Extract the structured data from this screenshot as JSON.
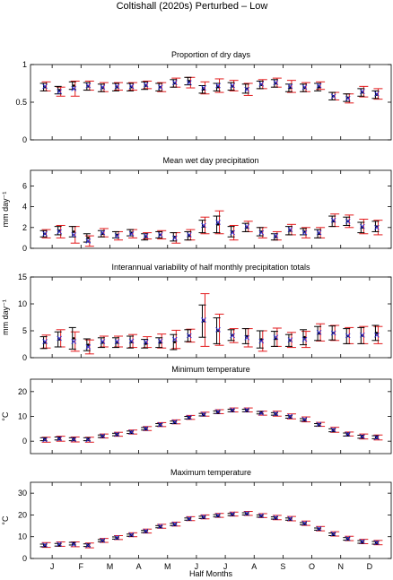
{
  "figure_title": "Coltishall (2020s) Perturbed – Low",
  "xlabel": "Half Months",
  "months": [
    "J",
    "F",
    "M",
    "A",
    "M",
    "J",
    "J",
    "A",
    "S",
    "O",
    "N",
    "D"
  ],
  "colors": {
    "observed": "#000000",
    "perturbed": "#e31a1c",
    "marker": "#2b2bd9"
  },
  "chart_data": [
    {
      "type": "errorbar",
      "title": "Proportion of dry days",
      "ylabel": "",
      "ylim": [
        0,
        1
      ],
      "yticks": [
        0,
        0.5,
        1
      ],
      "ytick_labels": [
        "0",
        "0.5",
        "1"
      ],
      "series": [
        {
          "values": [
            0.7,
            0.66,
            0.72,
            0.71,
            0.69,
            0.7,
            0.7,
            0.72,
            0.7,
            0.75,
            0.78,
            0.67,
            0.7,
            0.71,
            0.68,
            0.73,
            0.75,
            0.69,
            0.69,
            0.7,
            0.58,
            0.56,
            0.63,
            0.6
          ],
          "err": [
            0.05,
            0.05,
            0.05,
            0.05,
            0.05,
            0.05,
            0.05,
            0.05,
            0.05,
            0.05,
            0.05,
            0.05,
            0.05,
            0.05,
            0.06,
            0.05,
            0.05,
            0.05,
            0.05,
            0.05,
            0.05,
            0.05,
            0.05,
            0.05
          ]
        },
        {
          "values": [
            0.71,
            0.64,
            0.68,
            0.72,
            0.7,
            0.71,
            0.71,
            0.73,
            0.7,
            0.76,
            0.76,
            0.69,
            0.72,
            0.72,
            0.67,
            0.74,
            0.76,
            0.71,
            0.7,
            0.72,
            0.58,
            0.55,
            0.64,
            0.61
          ],
          "err": [
            0.06,
            0.06,
            0.1,
            0.06,
            0.06,
            0.05,
            0.05,
            0.05,
            0.06,
            0.06,
            0.07,
            0.08,
            0.09,
            0.07,
            0.08,
            0.06,
            0.06,
            0.08,
            0.06,
            0.05,
            0.05,
            0.06,
            0.07,
            0.07
          ]
        }
      ]
    },
    {
      "type": "errorbar",
      "title": "Mean wet day precipitation",
      "ylabel": "mm day⁻¹",
      "ylim": [
        0,
        7.5
      ],
      "yticks": [
        0,
        2,
        4,
        6
      ],
      "ytick_labels": [
        "0",
        "2",
        "4",
        "6"
      ],
      "series": [
        {
          "values": [
            1.4,
            1.7,
            1.6,
            1.0,
            1.4,
            1.3,
            1.5,
            1.1,
            1.3,
            1.1,
            1.2,
            2.1,
            2.3,
            1.6,
            2.0,
            1.6,
            1.1,
            1.7,
            1.6,
            1.4,
            2.6,
            2.6,
            2.0,
            2.1
          ],
          "err": [
            0.3,
            0.4,
            0.5,
            0.4,
            0.3,
            0.3,
            0.3,
            0.3,
            0.3,
            0.4,
            0.4,
            0.6,
            0.8,
            0.5,
            0.4,
            0.4,
            0.3,
            0.4,
            0.3,
            0.4,
            0.5,
            0.4,
            0.5,
            0.5
          ]
        },
        {
          "values": [
            1.4,
            1.6,
            1.3,
            0.7,
            1.5,
            1.2,
            1.4,
            1.2,
            1.3,
            1.0,
            1.3,
            2.2,
            2.5,
            1.5,
            2.1,
            1.5,
            1.2,
            1.8,
            1.5,
            1.5,
            2.7,
            2.6,
            2.1,
            2.0
          ],
          "err": [
            0.4,
            0.6,
            0.8,
            0.5,
            0.4,
            0.4,
            0.4,
            0.3,
            0.4,
            0.5,
            0.5,
            0.8,
            1.1,
            0.7,
            0.5,
            0.5,
            0.4,
            0.5,
            0.5,
            0.5,
            0.6,
            0.6,
            0.7,
            0.7
          ]
        }
      ]
    },
    {
      "type": "errorbar",
      "title": "Interannual variability of half monthly precipitation totals",
      "ylabel": "mm day⁻¹",
      "ylim": [
        0,
        15
      ],
      "yticks": [
        0,
        5,
        10,
        15
      ],
      "ytick_labels": [
        "0",
        "5",
        "10",
        "15"
      ],
      "series": [
        {
          "values": [
            2.8,
            3.4,
            3.6,
            2.4,
            2.8,
            2.8,
            2.9,
            2.6,
            2.8,
            2.9,
            4.1,
            6.8,
            5.0,
            4.2,
            4.0,
            3.4,
            3.5,
            3.2,
            3.8,
            4.5,
            4.6,
            4.0,
            4.1,
            4.6
          ],
          "err": [
            1.1,
            1.4,
            2.0,
            1.1,
            0.9,
            0.9,
            1.1,
            0.8,
            0.9,
            1.4,
            1.1,
            3.0,
            2.4,
            1.0,
            1.4,
            1.6,
            1.4,
            1.1,
            1.4,
            1.3,
            1.3,
            1.4,
            1.5,
            1.4
          ]
        },
        {
          "values": [
            3.0,
            3.6,
            3.0,
            2.0,
            3.0,
            3.0,
            3.1,
            2.9,
            3.1,
            3.4,
            4.1,
            7.0,
            5.2,
            4.1,
            3.7,
            3.1,
            3.8,
            3.3,
            3.4,
            4.7,
            4.6,
            4.1,
            4.2,
            4.2
          ],
          "err": [
            1.2,
            1.6,
            1.8,
            1.3,
            1.0,
            1.0,
            1.2,
            1.0,
            1.3,
            1.7,
            1.2,
            4.9,
            2.9,
            1.3,
            1.7,
            1.9,
            1.7,
            1.4,
            1.5,
            1.6,
            1.4,
            1.5,
            1.6,
            1.6
          ]
        }
      ]
    },
    {
      "type": "errorbar",
      "title": "Minimum temperature",
      "ylabel": "°C",
      "ylim": [
        -5,
        25
      ],
      "yticks": [
        0,
        10,
        20
      ],
      "ytick_labels": [
        "0",
        "10",
        "20"
      ],
      "series": [
        {
          "values": [
            0.8,
            1.1,
            0.8,
            0.8,
            2.0,
            2.7,
            3.6,
            5.0,
            6.6,
            7.6,
            9.5,
            10.7,
            11.7,
            12.4,
            12.4,
            11.5,
            11.0,
            9.8,
            8.6,
            6.6,
            4.4,
            2.7,
            1.8,
            1.6
          ],
          "err": [
            0.6,
            0.6,
            0.6,
            0.6,
            0.5,
            0.5,
            0.5,
            0.5,
            0.5,
            0.5,
            0.5,
            0.5,
            0.5,
            0.5,
            0.5,
            0.5,
            0.5,
            0.5,
            0.5,
            0.5,
            0.6,
            0.6,
            0.6,
            0.6
          ]
        },
        {
          "values": [
            0.6,
            1.0,
            0.7,
            0.6,
            2.1,
            2.8,
            3.7,
            5.1,
            6.7,
            7.8,
            9.6,
            10.9,
            11.9,
            12.6,
            12.6,
            11.3,
            11.1,
            10.0,
            8.8,
            6.8,
            4.6,
            2.9,
            1.9,
            1.5
          ],
          "err": [
            1.0,
            1.0,
            1.0,
            1.0,
            0.8,
            0.8,
            0.8,
            0.8,
            0.8,
            0.8,
            0.8,
            0.8,
            0.8,
            0.8,
            0.8,
            0.8,
            1.0,
            1.0,
            1.0,
            0.8,
            1.0,
            0.8,
            1.0,
            1.0
          ]
        }
      ]
    },
    {
      "type": "errorbar",
      "title": "Maximum temperature",
      "ylabel": "°C",
      "ylim": [
        0,
        35
      ],
      "yticks": [
        0,
        10,
        20,
        30
      ],
      "ytick_labels": [
        "0",
        "10",
        "20",
        "30"
      ],
      "series": [
        {
          "values": [
            6.0,
            6.3,
            6.8,
            6.1,
            8.2,
            9.4,
            10.7,
            12.4,
            14.6,
            15.6,
            18.1,
            18.9,
            19.6,
            20.2,
            20.5,
            19.5,
            18.6,
            18.1,
            16.0,
            13.5,
            11.1,
            9.0,
            7.6,
            7.2
          ],
          "err": [
            0.6,
            0.6,
            0.6,
            0.6,
            0.5,
            0.5,
            0.5,
            0.5,
            0.5,
            0.5,
            0.5,
            0.5,
            0.5,
            0.5,
            0.5,
            0.5,
            0.5,
            0.5,
            0.5,
            0.5,
            0.6,
            0.6,
            0.6,
            0.6
          ]
        },
        {
          "values": [
            6.2,
            6.6,
            6.5,
            6.0,
            8.3,
            9.6,
            10.9,
            12.6,
            14.8,
            15.8,
            18.3,
            19.1,
            19.8,
            20.4,
            20.7,
            19.7,
            18.8,
            18.3,
            16.2,
            13.7,
            11.3,
            9.2,
            7.8,
            7.3
          ],
          "err": [
            1.1,
            1.0,
            1.1,
            1.1,
            0.9,
            0.9,
            0.9,
            0.9,
            0.9,
            0.9,
            0.9,
            0.9,
            0.9,
            0.9,
            0.9,
            0.9,
            1.0,
            1.0,
            1.0,
            1.0,
            1.0,
            1.0,
            1.0,
            1.0
          ]
        }
      ]
    }
  ]
}
